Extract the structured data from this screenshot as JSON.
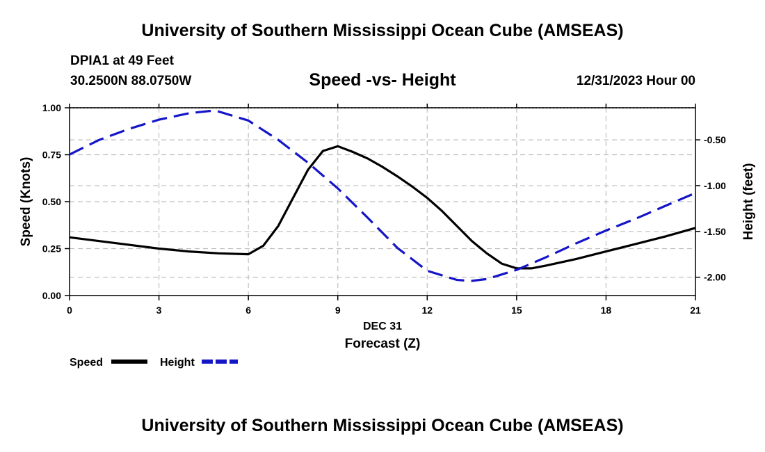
{
  "header": {
    "title": "University of Southern Mississippi Ocean Cube (AMSEAS)",
    "station": "DPIA1 at 49 Feet",
    "coords": "30.2500N  88.0750W",
    "datetime": "12/31/2023 Hour 00"
  },
  "footer": {
    "title": "University of Southern Mississippi Ocean Cube (AMSEAS)"
  },
  "chart_data": {
    "type": "line",
    "title": "Speed -vs- Height",
    "xlabel": "Forecast (Z)",
    "xlabel_date": "DEC 31",
    "ylabel_left": "Speed (Knots)",
    "ylabel_right": "Height (feet)",
    "xlim": [
      0,
      21
    ],
    "ylim_left": [
      0,
      1
    ],
    "ylim_right": [
      -2.2,
      -0.15
    ],
    "x_ticks": [
      0,
      3,
      6,
      9,
      12,
      15,
      18,
      21
    ],
    "y_left_ticks": [
      "0.00",
      "0.25",
      "0.50",
      "0.75",
      "1.00"
    ],
    "y_right_ticks": [
      "-2.00",
      "-1.50",
      "-1.00",
      "-0.50"
    ],
    "grid": true,
    "legend_position": "bottom-left",
    "series": [
      {
        "name": "Speed",
        "axis": "left",
        "color": "#000000",
        "style": "solid",
        "x": [
          0,
          1,
          2,
          3,
          4,
          5,
          6,
          6.5,
          7,
          7.5,
          8,
          8.5,
          9,
          9.5,
          10,
          10.5,
          11,
          11.5,
          12,
          12.5,
          13,
          13.5,
          14,
          14.5,
          15,
          15.5,
          16,
          17,
          18,
          19,
          20,
          21
        ],
        "values": [
          0.31,
          0.29,
          0.27,
          0.25,
          0.235,
          0.225,
          0.22,
          0.265,
          0.37,
          0.52,
          0.67,
          0.77,
          0.795,
          0.765,
          0.73,
          0.685,
          0.635,
          0.58,
          0.52,
          0.45,
          0.37,
          0.29,
          0.225,
          0.17,
          0.145,
          0.145,
          0.16,
          0.195,
          0.235,
          0.275,
          0.315,
          0.36
        ]
      },
      {
        "name": "Height",
        "axis": "right",
        "color": "#1515c8",
        "style": "dashed",
        "x": [
          0,
          1,
          2,
          3,
          4,
          4.7,
          5,
          6,
          7,
          8,
          9,
          10,
          11,
          12,
          13,
          13.5,
          14,
          15,
          16,
          17,
          18,
          19,
          20,
          21
        ],
        "values": [
          -0.66,
          -0.5,
          -0.38,
          -0.28,
          -0.21,
          -0.185,
          -0.19,
          -0.29,
          -0.5,
          -0.75,
          -1.03,
          -1.35,
          -1.68,
          -1.93,
          -2.03,
          -2.04,
          -2.02,
          -1.92,
          -1.78,
          -1.63,
          -1.49,
          -1.36,
          -1.22,
          -1.08
        ]
      }
    ]
  }
}
